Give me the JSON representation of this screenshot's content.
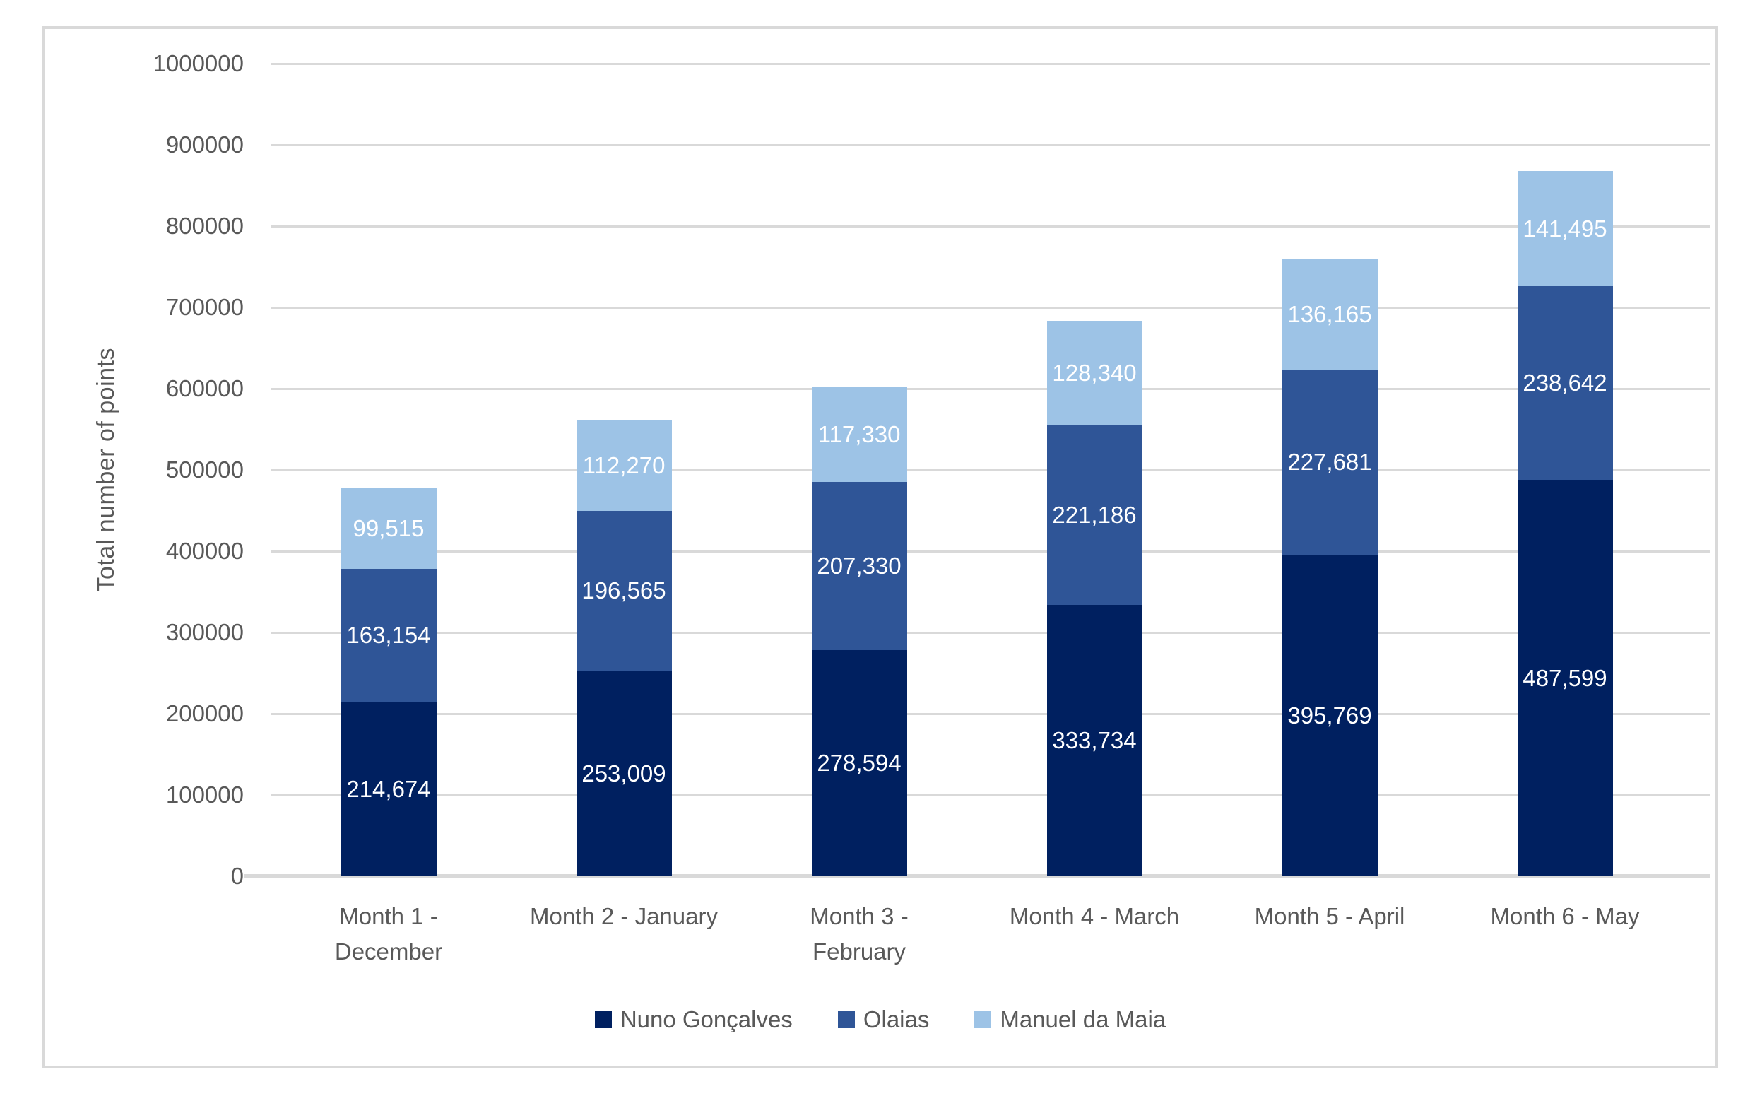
{
  "chart_data": {
    "type": "bar",
    "stacked": true,
    "title": "",
    "xlabel": "",
    "ylabel": "Total number of points",
    "ylim": [
      0,
      1000000
    ],
    "ytick_interval": 100000,
    "yticks": [
      "0",
      "100000",
      "200000",
      "300000",
      "400000",
      "500000",
      "600000",
      "700000",
      "800000",
      "900000",
      "1000000"
    ],
    "grid": true,
    "legend_position": "bottom",
    "categories": [
      "Month 1 - December",
      "Month 2 - January",
      "Month 3 - February",
      "Month 4 - March",
      "Month 5 - April",
      "Month 6 - May"
    ],
    "category_label_lines": [
      [
        "Month 1 -",
        "December"
      ],
      [
        "Month 2 - January"
      ],
      [
        "Month 3 -",
        "February"
      ],
      [
        "Month 4 - March"
      ],
      [
        "Month 5 - April"
      ],
      [
        "Month 6 - May"
      ]
    ],
    "series": [
      {
        "name": "Nuno Gonçalves",
        "color": "#002060",
        "values": [
          214674,
          253009,
          278594,
          333734,
          395769,
          487599
        ],
        "labels": [
          "214,674",
          "253,009",
          "278,594",
          "333,734",
          "395,769",
          "487,599"
        ]
      },
      {
        "name": "Olaias",
        "color": "#2F5597",
        "values": [
          163154,
          196565,
          207330,
          221186,
          227681,
          238642
        ],
        "labels": [
          "163,154",
          "196,565",
          "207,330",
          "221,186",
          "227,681",
          "238,642"
        ]
      },
      {
        "name": "Manuel da Maia",
        "color": "#9DC3E6",
        "values": [
          99515,
          112270,
          117330,
          128340,
          136165,
          141495
        ],
        "labels": [
          "99,515",
          "112,270",
          "117,330",
          "128,340",
          "136,165",
          "141,495"
        ]
      }
    ],
    "colors": {
      "gridline": "#D9D9D9",
      "frame_border": "#D9D9D9",
      "axis_text": "#595959",
      "data_label_text": "#FFFFFF",
      "background": "#FFFFFF"
    }
  }
}
